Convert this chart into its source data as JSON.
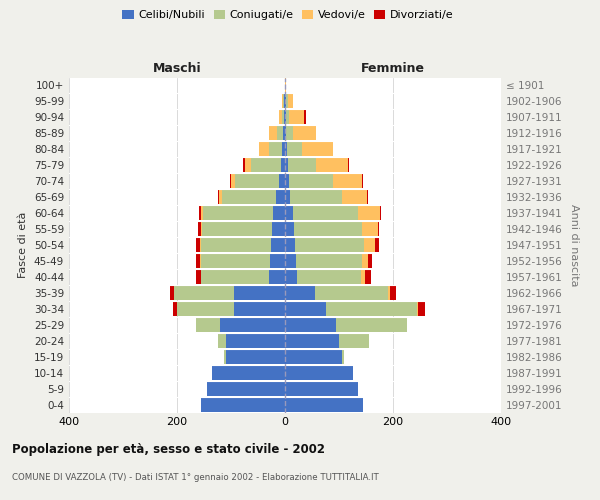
{
  "age_groups": [
    "0-4",
    "5-9",
    "10-14",
    "15-19",
    "20-24",
    "25-29",
    "30-34",
    "35-39",
    "40-44",
    "45-49",
    "50-54",
    "55-59",
    "60-64",
    "65-69",
    "70-74",
    "75-79",
    "80-84",
    "85-89",
    "90-94",
    "95-99",
    "100+"
  ],
  "birth_years": [
    "1997-2001",
    "1992-1996",
    "1987-1991",
    "1982-1986",
    "1977-1981",
    "1972-1976",
    "1967-1971",
    "1962-1966",
    "1957-1961",
    "1952-1956",
    "1947-1951",
    "1942-1946",
    "1937-1941",
    "1932-1936",
    "1927-1931",
    "1922-1926",
    "1917-1921",
    "1912-1916",
    "1907-1911",
    "1902-1906",
    "≤ 1901"
  ],
  "males": {
    "celibi": [
      155,
      145,
      135,
      110,
      110,
      120,
      95,
      95,
      30,
      28,
      26,
      24,
      22,
      16,
      12,
      8,
      5,
      4,
      2,
      2,
      0
    ],
    "coniugati": [
      0,
      0,
      0,
      3,
      15,
      45,
      105,
      110,
      125,
      128,
      130,
      130,
      130,
      100,
      80,
      55,
      25,
      10,
      4,
      2,
      0
    ],
    "vedovi": [
      0,
      0,
      0,
      0,
      0,
      0,
      0,
      0,
      0,
      1,
      1,
      2,
      4,
      6,
      8,
      12,
      18,
      15,
      5,
      2,
      0
    ],
    "divorziati": [
      0,
      0,
      0,
      0,
      0,
      0,
      8,
      8,
      10,
      7,
      8,
      6,
      4,
      2,
      2,
      2,
      0,
      0,
      0,
      0,
      0
    ]
  },
  "females": {
    "nubili": [
      145,
      135,
      125,
      105,
      100,
      95,
      75,
      55,
      22,
      20,
      18,
      16,
      14,
      10,
      8,
      6,
      3,
      2,
      2,
      2,
      0
    ],
    "coniugate": [
      0,
      0,
      0,
      5,
      55,
      130,
      170,
      135,
      118,
      122,
      128,
      126,
      122,
      96,
      80,
      52,
      28,
      12,
      6,
      3,
      0
    ],
    "vedove": [
      0,
      0,
      0,
      0,
      0,
      0,
      2,
      4,
      8,
      12,
      20,
      30,
      40,
      46,
      55,
      58,
      58,
      44,
      28,
      10,
      2
    ],
    "divorziate": [
      0,
      0,
      0,
      0,
      0,
      0,
      12,
      12,
      12,
      8,
      8,
      2,
      2,
      2,
      2,
      2,
      0,
      0,
      2,
      0,
      0
    ]
  },
  "colors": {
    "celibi_nubili": "#4472c4",
    "coniugati": "#b5c98e",
    "vedovi": "#ffc060",
    "divorziati": "#cc0000"
  },
  "xlim": 400,
  "title": "Popolazione per età, sesso e stato civile - 2002",
  "subtitle": "COMUNE DI VAZZOLA (TV) - Dati ISTAT 1° gennaio 2002 - Elaborazione TUTTITALIA.IT",
  "xlabel_left": "Maschi",
  "xlabel_right": "Femmine",
  "ylabel_left": "Fasce di età",
  "ylabel_right": "Anni di nascita",
  "bg_color": "#f0f0eb",
  "plot_bg_color": "#ffffff"
}
